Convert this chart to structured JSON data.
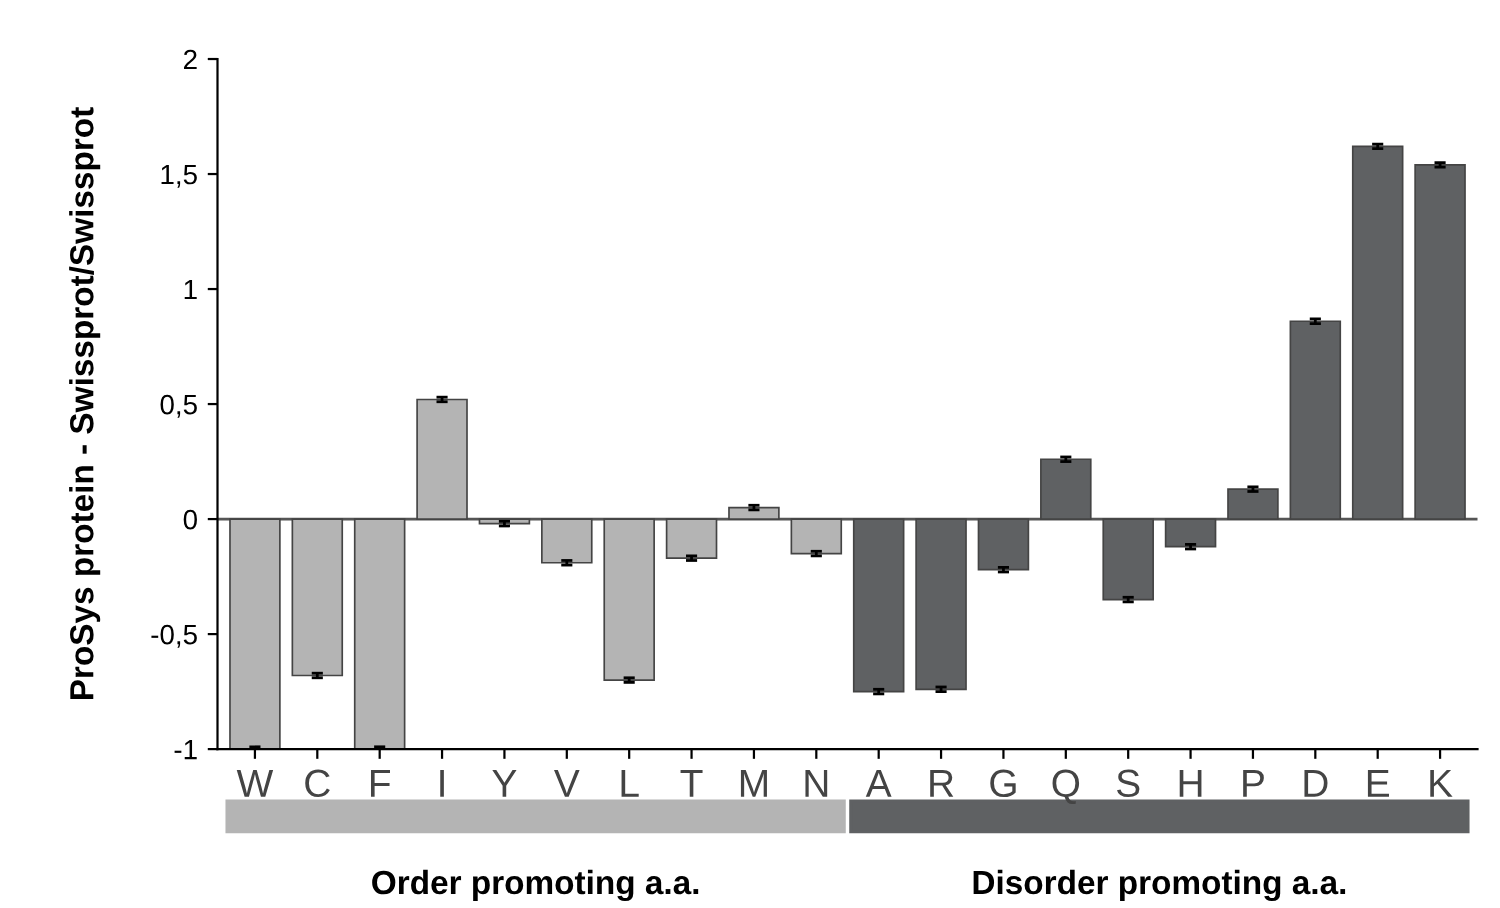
{
  "chart_data": {
    "type": "bar",
    "ylabel": "ProSys protein - Swissprot/Swissprot",
    "categories": [
      "W",
      "C",
      "F",
      "I",
      "Y",
      "V",
      "L",
      "T",
      "M",
      "N",
      "A",
      "R",
      "G",
      "Q",
      "S",
      "H",
      "P",
      "D",
      "E",
      "K"
    ],
    "values": [
      -1,
      -0.68,
      -1,
      0.52,
      -0.02,
      -0.19,
      -0.7,
      -0.17,
      0.05,
      -0.15,
      -0.75,
      -0.74,
      -0.22,
      0.26,
      -0.35,
      -0.12,
      0.13,
      0.86,
      1.62,
      1.54
    ],
    "errors": [
      0.01,
      0.01,
      0.01,
      0.01,
      0.01,
      0.01,
      0.01,
      0.01,
      0.01,
      0.01,
      0.01,
      0.01,
      0.01,
      0.01,
      0.01,
      0.01,
      0.01,
      0.01,
      0.01,
      0.01
    ],
    "colors": [
      "#b4b4b4",
      "#b4b4b4",
      "#b4b4b4",
      "#b4b4b4",
      "#b4b4b4",
      "#b4b4b4",
      "#b4b4b4",
      "#b4b4b4",
      "#b4b4b4",
      "#b4b4b4",
      "#5f6163",
      "#5f6163",
      "#5f6163",
      "#5f6163",
      "#5f6163",
      "#5f6163",
      "#5f6163",
      "#5f6163",
      "#5f6163",
      "#5f6163"
    ],
    "ylim": [
      -1,
      2
    ],
    "yticks": [
      {
        "value": -1,
        "label": "-1"
      },
      {
        "value": -0.5,
        "label": "-0,5"
      },
      0,
      {
        "value": 0.5,
        "label": "0,5"
      },
      1,
      {
        "value": 1.5,
        "label": "1,5"
      },
      2
    ],
    "annotations": [
      "Order promoting a.a.",
      "Disorder promoting a.a."
    ],
    "ref_lines": [
      {
        "axis": "y",
        "value": 0,
        "color": "#555555"
      }
    ],
    "legend": false
  }
}
